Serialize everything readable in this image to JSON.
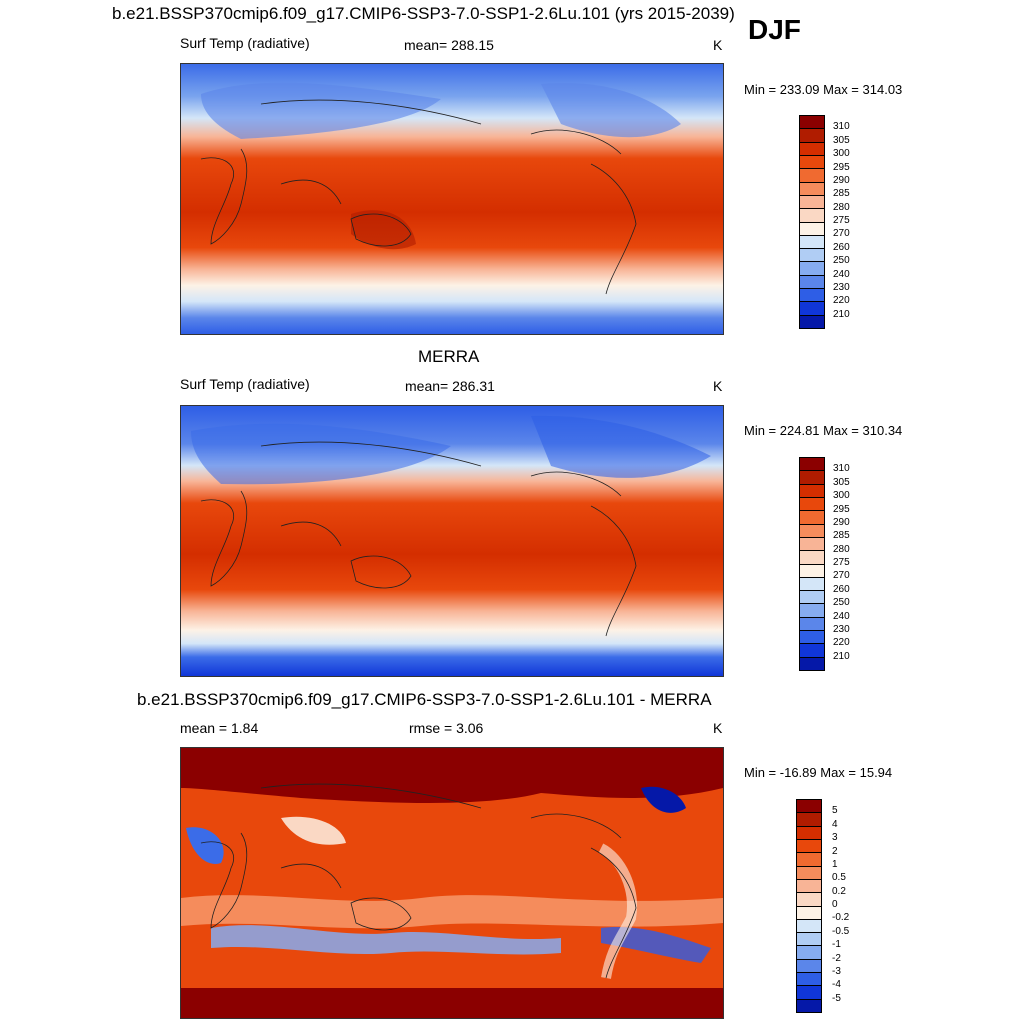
{
  "season": "DJF",
  "panels": [
    {
      "title": "b.e21.BSSP370cmip6.f09_g17.CMIP6-SSP3-7.0-SSP1-2.6Lu.101 (yrs 2015-2039)",
      "left_label": "Surf Temp (radiative)",
      "center_label": "mean= 288.15",
      "units": "K",
      "minmax": "Min = 233.09 Max = 314.03",
      "colorbar": {
        "levels": [
          "310",
          "305",
          "300",
          "295",
          "290",
          "285",
          "280",
          "275",
          "270",
          "260",
          "250",
          "240",
          "230",
          "220",
          "210"
        ],
        "colors": [
          "#8b0000",
          "#b01c00",
          "#d42e00",
          "#e8480c",
          "#f06a30",
          "#f58c5c",
          "#f8b496",
          "#fad8c4",
          "#fdf2e6",
          "#d4e6f8",
          "#b0cdf4",
          "#86acf0",
          "#5b86ea",
          "#2e5ee6",
          "#1036d8",
          "#0518a8"
        ]
      }
    },
    {
      "title": "MERRA",
      "left_label": "Surf Temp (radiative)",
      "center_label": "mean= 286.31",
      "units": "K",
      "minmax": "Min = 224.81 Max = 310.34",
      "colorbar": {
        "levels": [
          "310",
          "305",
          "300",
          "295",
          "290",
          "285",
          "280",
          "275",
          "270",
          "260",
          "250",
          "240",
          "230",
          "220",
          "210"
        ],
        "colors": [
          "#8b0000",
          "#b01c00",
          "#d42e00",
          "#e8480c",
          "#f06a30",
          "#f58c5c",
          "#f8b496",
          "#fad8c4",
          "#fdf2e6",
          "#d4e6f8",
          "#b0cdf4",
          "#86acf0",
          "#5b86ea",
          "#2e5ee6",
          "#1036d8",
          "#0518a8"
        ]
      }
    },
    {
      "title": "b.e21.BSSP370cmip6.f09_g17.CMIP6-SSP3-7.0-SSP1-2.6Lu.101 - MERRA",
      "left_label": "mean =   1.84",
      "center_label": "rmse =   3.06",
      "units": "K",
      "minmax": "Min = -16.89 Max =  15.94",
      "colorbar": {
        "levels": [
          "5",
          "4",
          "3",
          "2",
          "1",
          "0.5",
          "0.2",
          "0",
          "-0.2",
          "-0.5",
          "-1",
          "-2",
          "-3",
          "-4",
          "-5"
        ],
        "colors": [
          "#8b0000",
          "#b01c00",
          "#d42e00",
          "#e8480c",
          "#f06a30",
          "#f58c5c",
          "#f8b496",
          "#fad8c4",
          "#fdf2e6",
          "#d4e6f8",
          "#b0cdf4",
          "#86acf0",
          "#5b86ea",
          "#2e5ee6",
          "#1036d8",
          "#0518a8"
        ]
      }
    }
  ]
}
